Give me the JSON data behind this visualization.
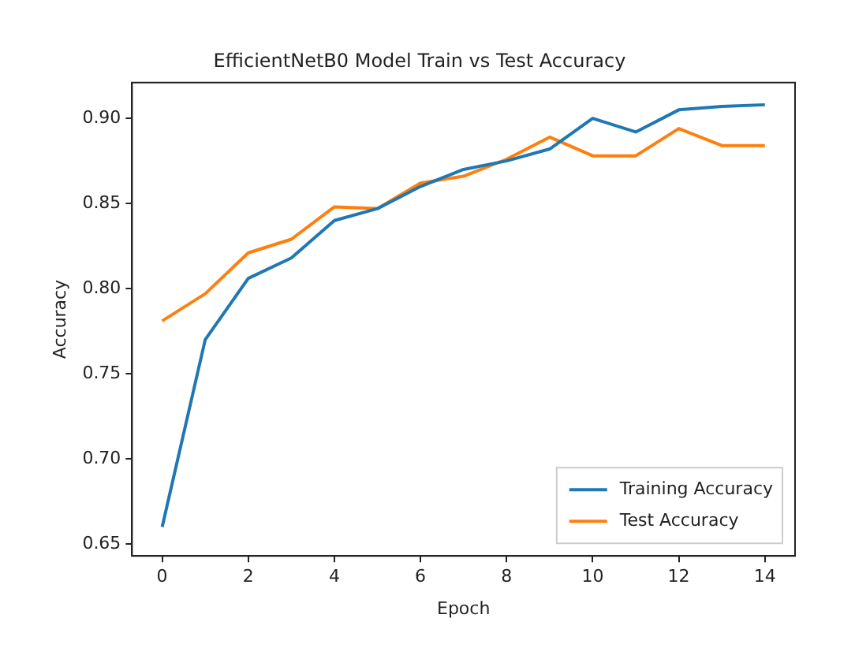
{
  "chart_data": {
    "type": "line",
    "title": "EfficientNetB0 Model Train vs Test Accuracy",
    "xlabel": "Epoch",
    "ylabel": "Accuracy",
    "x": [
      0,
      1,
      2,
      3,
      4,
      5,
      6,
      7,
      8,
      9,
      10,
      11,
      12,
      13,
      14
    ],
    "series": [
      {
        "name": "Training Accuracy",
        "color": "#1f77b4",
        "values": [
          0.66,
          0.77,
          0.806,
          0.818,
          0.84,
          0.847,
          0.86,
          0.87,
          0.875,
          0.882,
          0.9,
          0.892,
          0.905,
          0.907,
          0.908
        ]
      },
      {
        "name": "Test Accuracy",
        "color": "#ff7f0e",
        "values": [
          0.781,
          0.797,
          0.821,
          0.829,
          0.848,
          0.847,
          0.862,
          0.866,
          0.876,
          0.889,
          0.878,
          0.878,
          0.894,
          0.884,
          0.884
        ]
      }
    ],
    "xlim": [
      -0.7,
      14.7
    ],
    "xticks": [
      0,
      2,
      4,
      6,
      8,
      10,
      12,
      14
    ],
    "ylim": [
      0.643,
      0.921
    ],
    "yticks": [
      {
        "value": 0.65,
        "label": "0.65"
      },
      {
        "value": 0.7,
        "label": "0.70"
      },
      {
        "value": 0.75,
        "label": "0.75"
      },
      {
        "value": 0.8,
        "label": "0.80"
      },
      {
        "value": 0.85,
        "label": "0.85"
      },
      {
        "value": 0.9,
        "label": "0.90"
      }
    ],
    "legend": "bottom right",
    "grid": false,
    "marker": "none",
    "line_style": "solid"
  }
}
